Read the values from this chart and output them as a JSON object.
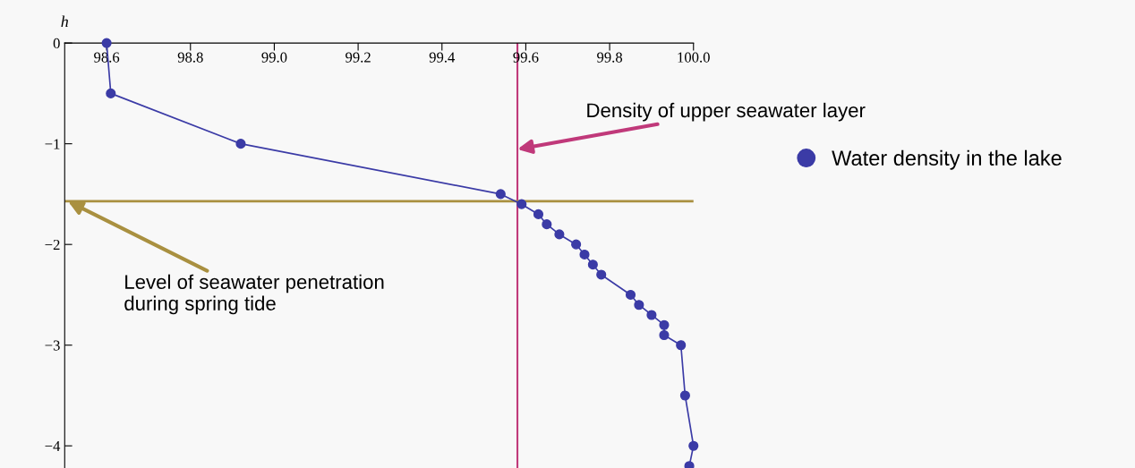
{
  "chart_data": {
    "type": "line",
    "ylabel": "h",
    "series": [
      {
        "name": "Water density in the lake",
        "color": "#3b3ba6",
        "x": [
          98.6,
          98.61,
          98.92,
          99.54,
          99.59,
          99.63,
          99.65,
          99.68,
          99.72,
          99.74,
          99.76,
          99.78,
          99.85,
          99.87,
          99.9,
          99.93,
          99.93,
          99.97,
          99.98,
          100.0,
          99.99
        ],
        "values": [
          0,
          -0.5,
          -1.0,
          -1.5,
          -1.6,
          -1.7,
          -1.8,
          -1.9,
          -2.0,
          -2.1,
          -2.2,
          -2.3,
          -2.5,
          -2.6,
          -2.7,
          -2.8,
          -2.9,
          -3.0,
          -3.5,
          -4.0,
          -4.2
        ]
      }
    ],
    "xlim": [
      98.5,
      100.0
    ],
    "ylim": [
      -4.22,
      0
    ],
    "xticks": [
      98.6,
      98.8,
      {
        "value": 99.0,
        "label": "99.0"
      },
      99.2,
      99.4,
      99.6,
      99.8,
      {
        "value": 100.0,
        "label": "100.0"
      }
    ],
    "yticks": [
      0,
      {
        "value": -1,
        "label": "−1"
      },
      {
        "value": -2,
        "label": "−2"
      },
      {
        "value": -3,
        "label": "−3"
      },
      {
        "value": -4,
        "label": "−4"
      }
    ],
    "ref_lines": [
      {
        "axis": "x",
        "value": 99.58,
        "color": "#c0397a",
        "label": "Density of upper seawater layer"
      },
      {
        "axis": "y",
        "value": -1.57,
        "color": "#a99040",
        "label": "Level of seawater penetration\nduring spring tide"
      }
    ],
    "marker": "circle",
    "line_style": "solid",
    "legend": "right",
    "grid": false
  }
}
